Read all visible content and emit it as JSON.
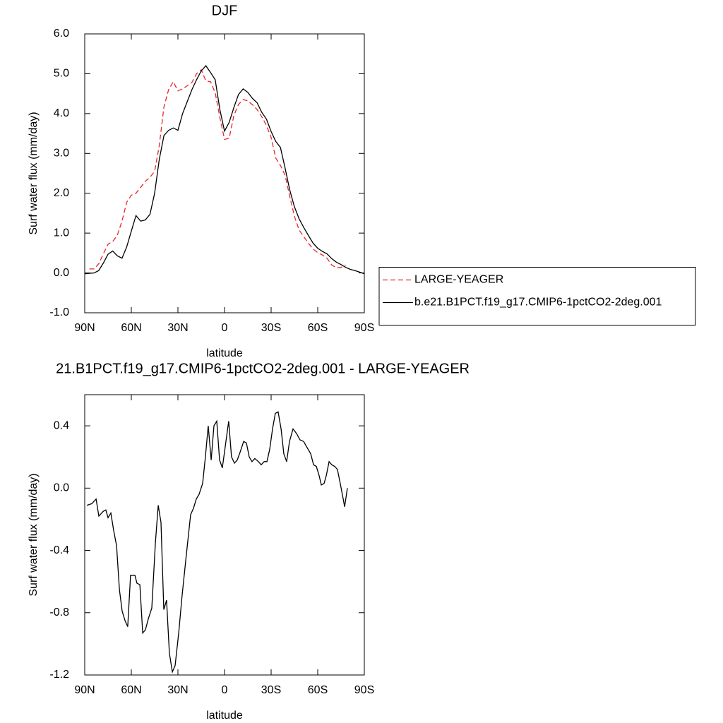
{
  "chart_data": [
    {
      "type": "line",
      "title": "DJF",
      "xlabel": "latitude",
      "ylabel": "Surf water flux (mm/day)",
      "x": [
        90,
        87,
        84,
        81,
        78,
        75,
        72,
        69,
        66,
        63,
        60,
        57,
        54,
        51,
        48,
        45,
        42,
        39,
        36,
        33,
        30,
        27,
        24,
        21,
        18,
        15,
        12,
        9,
        6,
        3,
        0,
        -3,
        -6,
        -9,
        -12,
        -15,
        -18,
        -21,
        -24,
        -27,
        -30,
        -33,
        -36,
        -39,
        -42,
        -45,
        -48,
        -51,
        -54,
        -57,
        -60,
        -63,
        -66,
        -69,
        -72,
        -75,
        -78,
        -81,
        -84,
        -87,
        -90
      ],
      "series": [
        {
          "name": "LARGE-YEAGER",
          "color": "#e8262b",
          "linestyle": "dashed",
          "values": [
            null,
            0.1,
            0.1,
            0.23,
            0.48,
            0.72,
            0.79,
            0.95,
            1.3,
            1.77,
            1.95,
            2.0,
            2.15,
            2.3,
            2.4,
            2.55,
            3.2,
            4.17,
            4.6,
            4.8,
            4.57,
            4.62,
            4.7,
            4.78,
            5.0,
            5.1,
            4.82,
            4.8,
            4.52,
            3.9,
            3.35,
            3.38,
            3.95,
            4.23,
            4.35,
            4.32,
            4.22,
            4.1,
            3.92,
            3.7,
            3.4,
            2.88,
            2.7,
            2.45,
            1.92,
            1.42,
            1.08,
            0.91,
            0.75,
            0.6,
            0.51,
            0.45,
            0.37,
            0.2,
            0.13,
            0.14,
            0.2,
            null,
            null,
            null,
            null
          ]
        },
        {
          "name": "b.e21.B1PCT.f19_g17.CMIP6-1pctCO2-2deg.001",
          "color": "#000000",
          "linestyle": "solid",
          "values": [
            -0.02,
            -0.01,
            0.0,
            0.06,
            0.25,
            0.47,
            0.55,
            0.43,
            0.37,
            0.65,
            1.05,
            1.44,
            1.3,
            1.33,
            1.47,
            2.0,
            2.85,
            3.45,
            3.58,
            3.64,
            3.58,
            4.0,
            4.3,
            4.6,
            4.85,
            5.07,
            5.2,
            5.03,
            4.85,
            4.1,
            3.56,
            3.78,
            4.15,
            4.48,
            4.62,
            4.53,
            4.38,
            4.27,
            4.03,
            3.86,
            3.55,
            3.3,
            3.15,
            2.63,
            2.08,
            1.66,
            1.36,
            1.14,
            0.94,
            0.75,
            0.62,
            0.54,
            0.48,
            0.36,
            0.27,
            0.21,
            0.14,
            0.09,
            0.06,
            0.02,
            -0.02
          ]
        }
      ],
      "xlim": [
        90,
        -90
      ],
      "xticks": [
        {
          "value": 90,
          "label": "90N"
        },
        {
          "value": 60,
          "label": "60N"
        },
        {
          "value": 30,
          "label": "30N"
        },
        0,
        {
          "value": -30,
          "label": "30S"
        },
        {
          "value": -60,
          "label": "60S"
        },
        {
          "value": -90,
          "label": "90S"
        }
      ],
      "ylim": [
        -1,
        6
      ],
      "yticks": [
        {
          "value": -1,
          "label": "-1.0"
        },
        {
          "value": 0,
          "label": "0.0"
        },
        {
          "value": 1,
          "label": "1.0"
        },
        {
          "value": 2,
          "label": "2.0"
        },
        {
          "value": 3,
          "label": "3.0"
        },
        {
          "value": 4,
          "label": "4.0"
        },
        {
          "value": 5,
          "label": "5.0"
        },
        {
          "value": 6,
          "label": "6.0"
        }
      ],
      "legend": "right",
      "grid": false
    },
    {
      "type": "line",
      "title": "21.B1PCT.f19_g17.CMIP6-1pctCO2-2deg.001 - LARGE-YEAGER",
      "xlabel": "latitude",
      "ylabel": "Surf water flux (mm/day)",
      "x": [
        88.6,
        85.5,
        82.7,
        80.9,
        78.2,
        76.4,
        75.0,
        73.2,
        71.4,
        69.5,
        67.7,
        65.9,
        64.1,
        62.3,
        60.5,
        57.7,
        56.4,
        54.5,
        52.7,
        50.9,
        49.1,
        46.8,
        44.5,
        42.7,
        40.9,
        39.1,
        37.3,
        35.5,
        33.6,
        31.8,
        29.5,
        27.3,
        24.5,
        21.8,
        20.0,
        18.2,
        16.4,
        14.1,
        12.3,
        10.5,
        8.6,
        6.8,
        5.0,
        3.2,
        1.4,
        -0.9,
        -2.7,
        -4.5,
        -6.4,
        -8.2,
        -10.0,
        -12.3,
        -14.1,
        -15.9,
        -17.7,
        -19.5,
        -21.8,
        -23.6,
        -25.5,
        -27.3,
        -29.1,
        -30.9,
        -32.7,
        -34.5,
        -36.4,
        -38.2,
        -40.0,
        -41.8,
        -44.1,
        -46.4,
        -48.6,
        -50.9,
        -53.2,
        -55.5,
        -57.3,
        -59.1,
        -60.9,
        -62.3,
        -64.1,
        -65.5,
        -67.3,
        -69.1,
        -70.9,
        -72.7,
        -74.5,
        -76.4,
        -77.3,
        -79.1
      ],
      "series": [
        {
          "color": "#000000",
          "linestyle": "solid",
          "values": [
            -0.11,
            -0.1,
            -0.07,
            -0.18,
            -0.15,
            -0.14,
            -0.19,
            -0.16,
            -0.27,
            -0.37,
            -0.65,
            -0.79,
            -0.85,
            -0.89,
            -0.56,
            -0.56,
            -0.61,
            -0.62,
            -0.93,
            -0.91,
            -0.84,
            -0.77,
            -0.35,
            -0.11,
            -0.22,
            -0.78,
            -0.72,
            -1.06,
            -1.18,
            -1.14,
            -0.93,
            -0.69,
            -0.42,
            -0.17,
            -0.13,
            -0.07,
            -0.04,
            0.03,
            0.2,
            0.4,
            0.18,
            0.4,
            0.43,
            0.18,
            0.13,
            0.3,
            0.43,
            0.2,
            0.16,
            0.18,
            0.23,
            0.3,
            0.29,
            0.2,
            0.17,
            0.19,
            0.17,
            0.15,
            0.17,
            0.17,
            0.25,
            0.38,
            0.48,
            0.49,
            0.38,
            0.22,
            0.17,
            0.3,
            0.38,
            0.35,
            0.31,
            0.3,
            0.26,
            0.22,
            0.15,
            0.14,
            0.08,
            0.02,
            0.03,
            0.08,
            0.17,
            0.15,
            0.14,
            0.12,
            0.03,
            -0.07,
            -0.12,
            0.0
          ]
        }
      ],
      "xlim": [
        90,
        -90
      ],
      "xticks": [
        {
          "value": 90,
          "label": "90N"
        },
        {
          "value": 60,
          "label": "60N"
        },
        {
          "value": 30,
          "label": "30N"
        },
        0,
        {
          "value": -30,
          "label": "30S"
        },
        {
          "value": -60,
          "label": "60S"
        },
        {
          "value": -90,
          "label": "90S"
        }
      ],
      "ylim": [
        -1.2,
        0.6
      ],
      "yticks": [
        -1.2,
        -0.8,
        -0.4,
        {
          "value": 0,
          "label": "0.0"
        },
        0.4
      ],
      "grid": false
    }
  ]
}
